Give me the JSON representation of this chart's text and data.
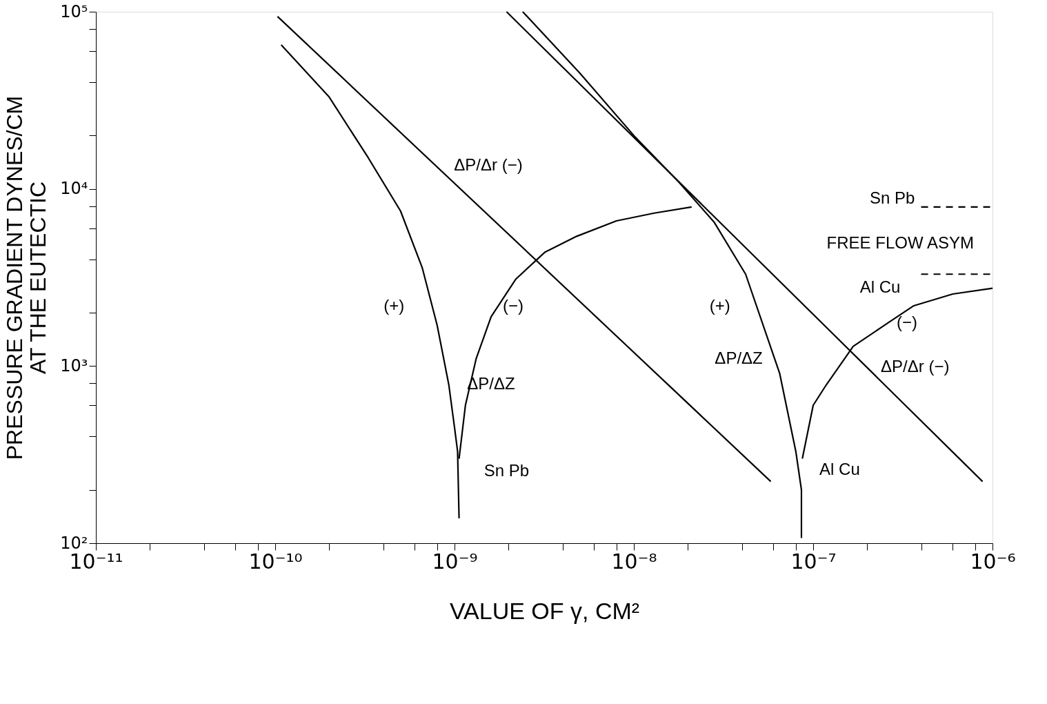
{
  "chart_data": {
    "type": "line",
    "xlabel": "VALUE OF γ, CM²",
    "ylabel": "PRESSURE GRADIENT DYNES/CM\nAT THE EUTECTIC",
    "log": "xy",
    "grid": false,
    "line_style": "solid",
    "marker": "none",
    "xlim": [
      1e-11,
      1e-06
    ],
    "ylim": [
      100,
      100000
    ],
    "xticks": [
      {
        "value": 1e-11,
        "label": "10⁻¹¹"
      },
      {
        "value": 2e-11,
        "label": null
      },
      {
        "value": 4e-11,
        "label": null
      },
      {
        "value": 6e-11,
        "label": null
      },
      {
        "value": 8e-11,
        "label": null
      },
      {
        "value": 1e-10,
        "label": "10⁻¹⁰"
      },
      {
        "value": 2e-10,
        "label": null
      },
      {
        "value": 4e-10,
        "label": null
      },
      {
        "value": 6e-10,
        "label": null
      },
      {
        "value": 8e-10,
        "label": null
      },
      {
        "value": 1e-09,
        "label": "10⁻⁹"
      },
      {
        "value": 2e-09,
        "label": null
      },
      {
        "value": 4e-09,
        "label": null
      },
      {
        "value": 6e-09,
        "label": null
      },
      {
        "value": 8e-09,
        "label": null
      },
      {
        "value": 1e-08,
        "label": "10⁻⁸"
      },
      {
        "value": 2e-08,
        "label": null
      },
      {
        "value": 4e-08,
        "label": null
      },
      {
        "value": 6e-08,
        "label": null
      },
      {
        "value": 8e-08,
        "label": null
      },
      {
        "value": 1e-07,
        "label": "10⁻⁷"
      },
      {
        "value": 2e-07,
        "label": null
      },
      {
        "value": 4e-07,
        "label": null
      },
      {
        "value": 6e-07,
        "label": null
      },
      {
        "value": 8e-07,
        "label": null
      },
      {
        "value": 1e-06,
        "label": "10⁻⁶"
      }
    ],
    "yticks": [
      {
        "value": 100,
        "label": "10²"
      },
      {
        "value": 200,
        "label": null
      },
      {
        "value": 400,
        "label": null
      },
      {
        "value": 600,
        "label": null
      },
      {
        "value": 800,
        "label": null
      },
      {
        "value": 1000,
        "label": "10³"
      },
      {
        "value": 2000,
        "label": null
      },
      {
        "value": 4000,
        "label": null
      },
      {
        "value": 6000,
        "label": null
      },
      {
        "value": 8000,
        "label": null
      },
      {
        "value": 10000,
        "label": "10⁴"
      },
      {
        "value": 20000,
        "label": null
      },
      {
        "value": 40000,
        "label": null
      },
      {
        "value": 60000,
        "label": null
      },
      {
        "value": 80000,
        "label": null
      },
      {
        "value": 100000,
        "label": "10⁵"
      }
    ],
    "series": [
      {
        "color": "#000000",
        "x": [
          1.03e-10,
          5.8e-08
        ],
        "values": [
          94000,
          223
        ]
      },
      {
        "color": "#000000",
        "x": [
          1.08e-10,
          2e-10,
          3.3e-10,
          5e-10,
          6.6e-10,
          8e-10,
          9.3e-10,
          1e-09,
          1.04e-09,
          1.06e-09
        ],
        "values": [
          65000,
          33000,
          15000,
          7500,
          3600,
          1700,
          780,
          450,
          330,
          138
        ]
      },
      {
        "color": "#000000",
        "x": [
          1.06e-09,
          1.15e-09,
          1.32e-09,
          1.6e-09,
          2.2e-09,
          3.2e-09,
          4.8e-09,
          8e-09,
          1.3e-08,
          2.1e-08
        ],
        "values": [
          300,
          600,
          1100,
          1900,
          3100,
          4400,
          5400,
          6600,
          7300,
          7900
        ]
      },
      {
        "color": "#000000",
        "x": [
          1.95e-09,
          8.8e-07
        ],
        "values": [
          100000,
          223
        ]
      },
      {
        "color": "#000000",
        "x": [
          2.4e-09,
          5e-09,
          1e-08,
          1.77e-08,
          2.8e-08,
          4.2e-08,
          6.5e-08,
          8e-08,
          8.6e-08,
          8.6e-08
        ],
        "values": [
          100000,
          45000,
          20000,
          11000,
          6500,
          3300,
          910,
          330,
          200,
          107
        ]
      },
      {
        "color": "#000000",
        "x": [
          8.7e-08,
          1e-07,
          1.18e-07,
          1.67e-07,
          2.5e-07,
          3.64e-07,
          6e-07,
          1e-06
        ],
        "values": [
          300,
          600,
          780,
          1290,
          1700,
          2190,
          2550,
          2750
        ]
      },
      {
        "color": "#000000",
        "line_style": "dashed",
        "x": [
          4e-07,
          1e-06
        ],
        "values": [
          7900,
          7900
        ]
      },
      {
        "color": "#000000",
        "line_style": "dashed",
        "x": [
          4e-07,
          1e-06
        ],
        "values": [
          3300,
          3300
        ]
      }
    ],
    "annotations": [
      "ΔP/Δr (−)",
      "(+)",
      "(−)",
      "ΔP/ΔZ",
      "Sn Pb",
      "(+)",
      "ΔP/ΔZ",
      "Al Cu",
      "(−)",
      "ΔP/Δr (−)",
      "Sn Pb",
      "FREE FLOW ASYM",
      "Al Cu"
    ]
  }
}
